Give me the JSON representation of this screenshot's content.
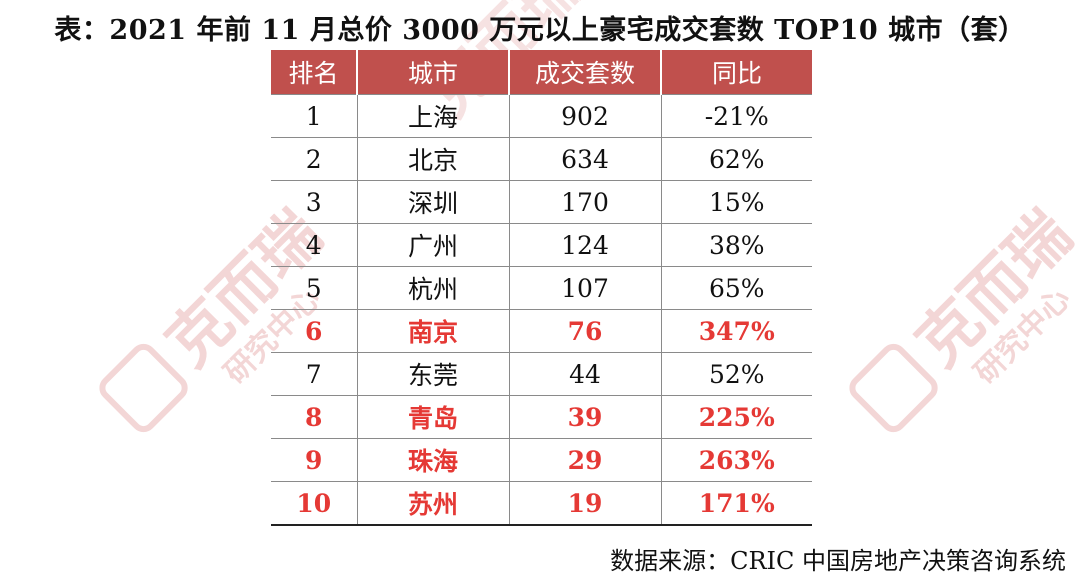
{
  "title": "表：2021 年前 11 月总价 3000 万元以上豪宅成交套数 TOP10 城市（套）",
  "table": {
    "headers": [
      "排名",
      "城市",
      "成交套数",
      "同比"
    ],
    "rows": [
      {
        "rank": "1",
        "city": "上海",
        "count": "902",
        "yoy": "-21%",
        "highlight": false
      },
      {
        "rank": "2",
        "city": "北京",
        "count": "634",
        "yoy": "62%",
        "highlight": false
      },
      {
        "rank": "3",
        "city": "深圳",
        "count": "170",
        "yoy": "15%",
        "highlight": false
      },
      {
        "rank": "4",
        "city": "广州",
        "count": "124",
        "yoy": "38%",
        "highlight": false
      },
      {
        "rank": "5",
        "city": "杭州",
        "count": "107",
        "yoy": "65%",
        "highlight": false
      },
      {
        "rank": "6",
        "city": "南京",
        "count": "76",
        "yoy": "347%",
        "highlight": true
      },
      {
        "rank": "7",
        "city": "东莞",
        "count": "44",
        "yoy": "52%",
        "highlight": false
      },
      {
        "rank": "8",
        "city": "青岛",
        "count": "39",
        "yoy": "225%",
        "highlight": true
      },
      {
        "rank": "9",
        "city": "珠海",
        "count": "29",
        "yoy": "263%",
        "highlight": true
      },
      {
        "rank": "10",
        "city": "苏州",
        "count": "19",
        "yoy": "171%",
        "highlight": true
      }
    ]
  },
  "source": "数据来源：CRIC 中国房地产决策咨询系统",
  "watermark": {
    "text": "克而瑞",
    "subtext": "研究中心",
    "color": "#f3d6d6"
  },
  "colors": {
    "header_bg": "#c0504d",
    "highlight_text": "#e53935"
  }
}
